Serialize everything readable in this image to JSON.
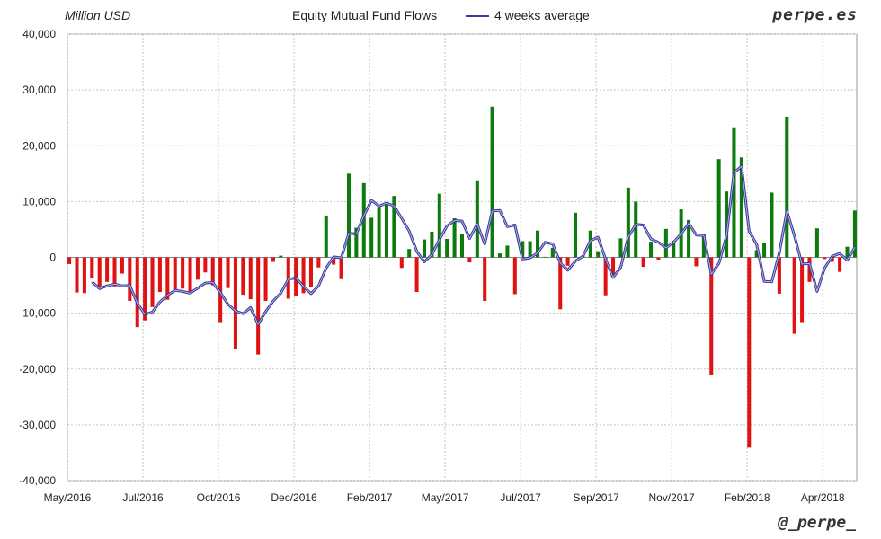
{
  "header": {
    "unit_label": "Million USD",
    "title": "Equity Mutual Fund Flows",
    "legend_label": "4 weeks average",
    "brand": "perpe.es"
  },
  "footer": {
    "handle": "@_perpe_"
  },
  "chart_data": {
    "type": "bar",
    "title": "Equity Mutual Fund Flows",
    "ylabel": "Million USD",
    "ylim": [
      -40000,
      40000
    ],
    "yticks": [
      -40000,
      -30000,
      -20000,
      -10000,
      0,
      10000,
      20000,
      30000,
      40000
    ],
    "ytick_labels": [
      "-40,000",
      "-30,000",
      "-20,000",
      "-10,000",
      "0",
      "10,000",
      "20,000",
      "30,000",
      "40,000"
    ],
    "x_range": [
      0,
      104.5
    ],
    "xticks": [
      {
        "label": "May/2016",
        "pos": 0
      },
      {
        "label": "Jul/2016",
        "pos": 10
      },
      {
        "label": "Oct/2016",
        "pos": 20
      },
      {
        "label": "Dec/2016",
        "pos": 30
      },
      {
        "label": "Feb/2017",
        "pos": 40
      },
      {
        "label": "May/2017",
        "pos": 50
      },
      {
        "label": "Jul/2017",
        "pos": 60
      },
      {
        "label": "Sep/2017",
        "pos": 70
      },
      {
        "label": "Nov/2017",
        "pos": 80
      },
      {
        "label": "Feb/2018",
        "pos": 90
      },
      {
        "label": "Apr/2018",
        "pos": 100
      }
    ],
    "grid": true,
    "positive_color": "#0c7a0c",
    "negative_color": "#e01212",
    "average_color": "#3b3b9e",
    "series": [
      {
        "name": "Weekly flows",
        "values": [
          -1200,
          -6300,
          -6400,
          -3800,
          -5700,
          -4400,
          -5200,
          -2900,
          -7800,
          -12500,
          -11300,
          -8900,
          -6200,
          -7600,
          -6100,
          -5600,
          -6500,
          -4000,
          -2700,
          -5000,
          -11600,
          -5500,
          -16400,
          -6700,
          -7500,
          -17400,
          -7800,
          -800,
          300,
          -7400,
          -7000,
          -6400,
          -5300,
          -1800,
          7500,
          -1300,
          -3900,
          15000,
          5300,
          13300,
          7100,
          9000,
          9500,
          11000,
          -1900,
          1500,
          -6200,
          3200,
          4600,
          11400,
          3300,
          7000,
          4200,
          -900,
          13800,
          -7800,
          27000,
          700,
          2100,
          -6600,
          2900,
          2900,
          4800,
          100,
          1700,
          -9300,
          -1500,
          8000,
          200,
          4800,
          1100,
          -6800,
          -3500,
          3400,
          12500,
          10000,
          -1700,
          2800,
          -400,
          5100,
          3000,
          8600,
          6700,
          -1600,
          4100,
          -21000,
          17600,
          11800,
          23300,
          17900,
          -34100,
          1300,
          2500,
          11600,
          -6500,
          25200,
          -13700,
          -11600,
          -4400,
          5200,
          -300,
          -800,
          -2600,
          1900,
          8400
        ]
      },
      {
        "name": "4 weeks average",
        "values": [
          null,
          null,
          null,
          -4400,
          -5600,
          -5100,
          -4800,
          -5100,
          -5000,
          -8200,
          -10200,
          -9800,
          -8000,
          -6800,
          -5900,
          -6100,
          -6400,
          -5500,
          -4600,
          -4500,
          -6300,
          -8400,
          -9600,
          -10100,
          -9000,
          -12000,
          -9700,
          -7800,
          -6400,
          -3900,
          -3700,
          -5200,
          -6500,
          -5100,
          -1900,
          100,
          -100,
          4300,
          4200,
          7500,
          10200,
          9200,
          9700,
          9200,
          7000,
          4700,
          1100,
          -800,
          500,
          3200,
          5600,
          6600,
          6500,
          3400,
          6000,
          2400,
          8300,
          8400,
          5500,
          5800,
          -300,
          -100,
          800,
          2700,
          2400,
          -1000,
          -2300,
          -700,
          200,
          3000,
          3600,
          -300,
          -3600,
          -1800,
          3600,
          5900,
          5800,
          3300,
          2700,
          1700,
          2700,
          4200,
          6100,
          4000,
          3900,
          -3000,
          -1100,
          3800,
          15200,
          16300,
          4700,
          2300,
          -4300,
          -4400,
          800,
          8300,
          3900,
          -1200,
          -1100,
          -6100,
          -1900,
          200,
          700,
          -500,
          1800
        ]
      }
    ]
  }
}
